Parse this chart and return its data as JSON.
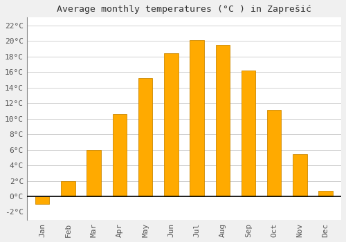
{
  "title": "Average monthly temperatures (°C ) in Zaprešić",
  "months": [
    "Jan",
    "Feb",
    "Mar",
    "Apr",
    "May",
    "Jun",
    "Jul",
    "Aug",
    "Sep",
    "Oct",
    "Nov",
    "Dec"
  ],
  "values": [
    -1.0,
    2.0,
    6.0,
    10.6,
    15.2,
    18.4,
    20.1,
    19.5,
    16.2,
    11.1,
    5.4,
    0.7
  ],
  "bar_color": "#FFAA00",
  "bar_edge_color": "#CC8800",
  "background_color": "#f0f0f0",
  "plot_bg_color": "#ffffff",
  "grid_color": "#d0d0d0",
  "ylim": [
    -3.0,
    23.0
  ],
  "yticks": [
    0,
    2,
    4,
    6,
    8,
    10,
    12,
    14,
    16,
    18,
    20,
    22
  ],
  "ytick_labels": [
    "0°C",
    "2°C",
    "4°C",
    "6°C",
    "8°C",
    "10°C",
    "12°C",
    "14°C",
    "16°C",
    "18°C",
    "20°C",
    "22°C"
  ],
  "title_fontsize": 9.5,
  "tick_fontsize": 8,
  "bar_width": 0.55
}
